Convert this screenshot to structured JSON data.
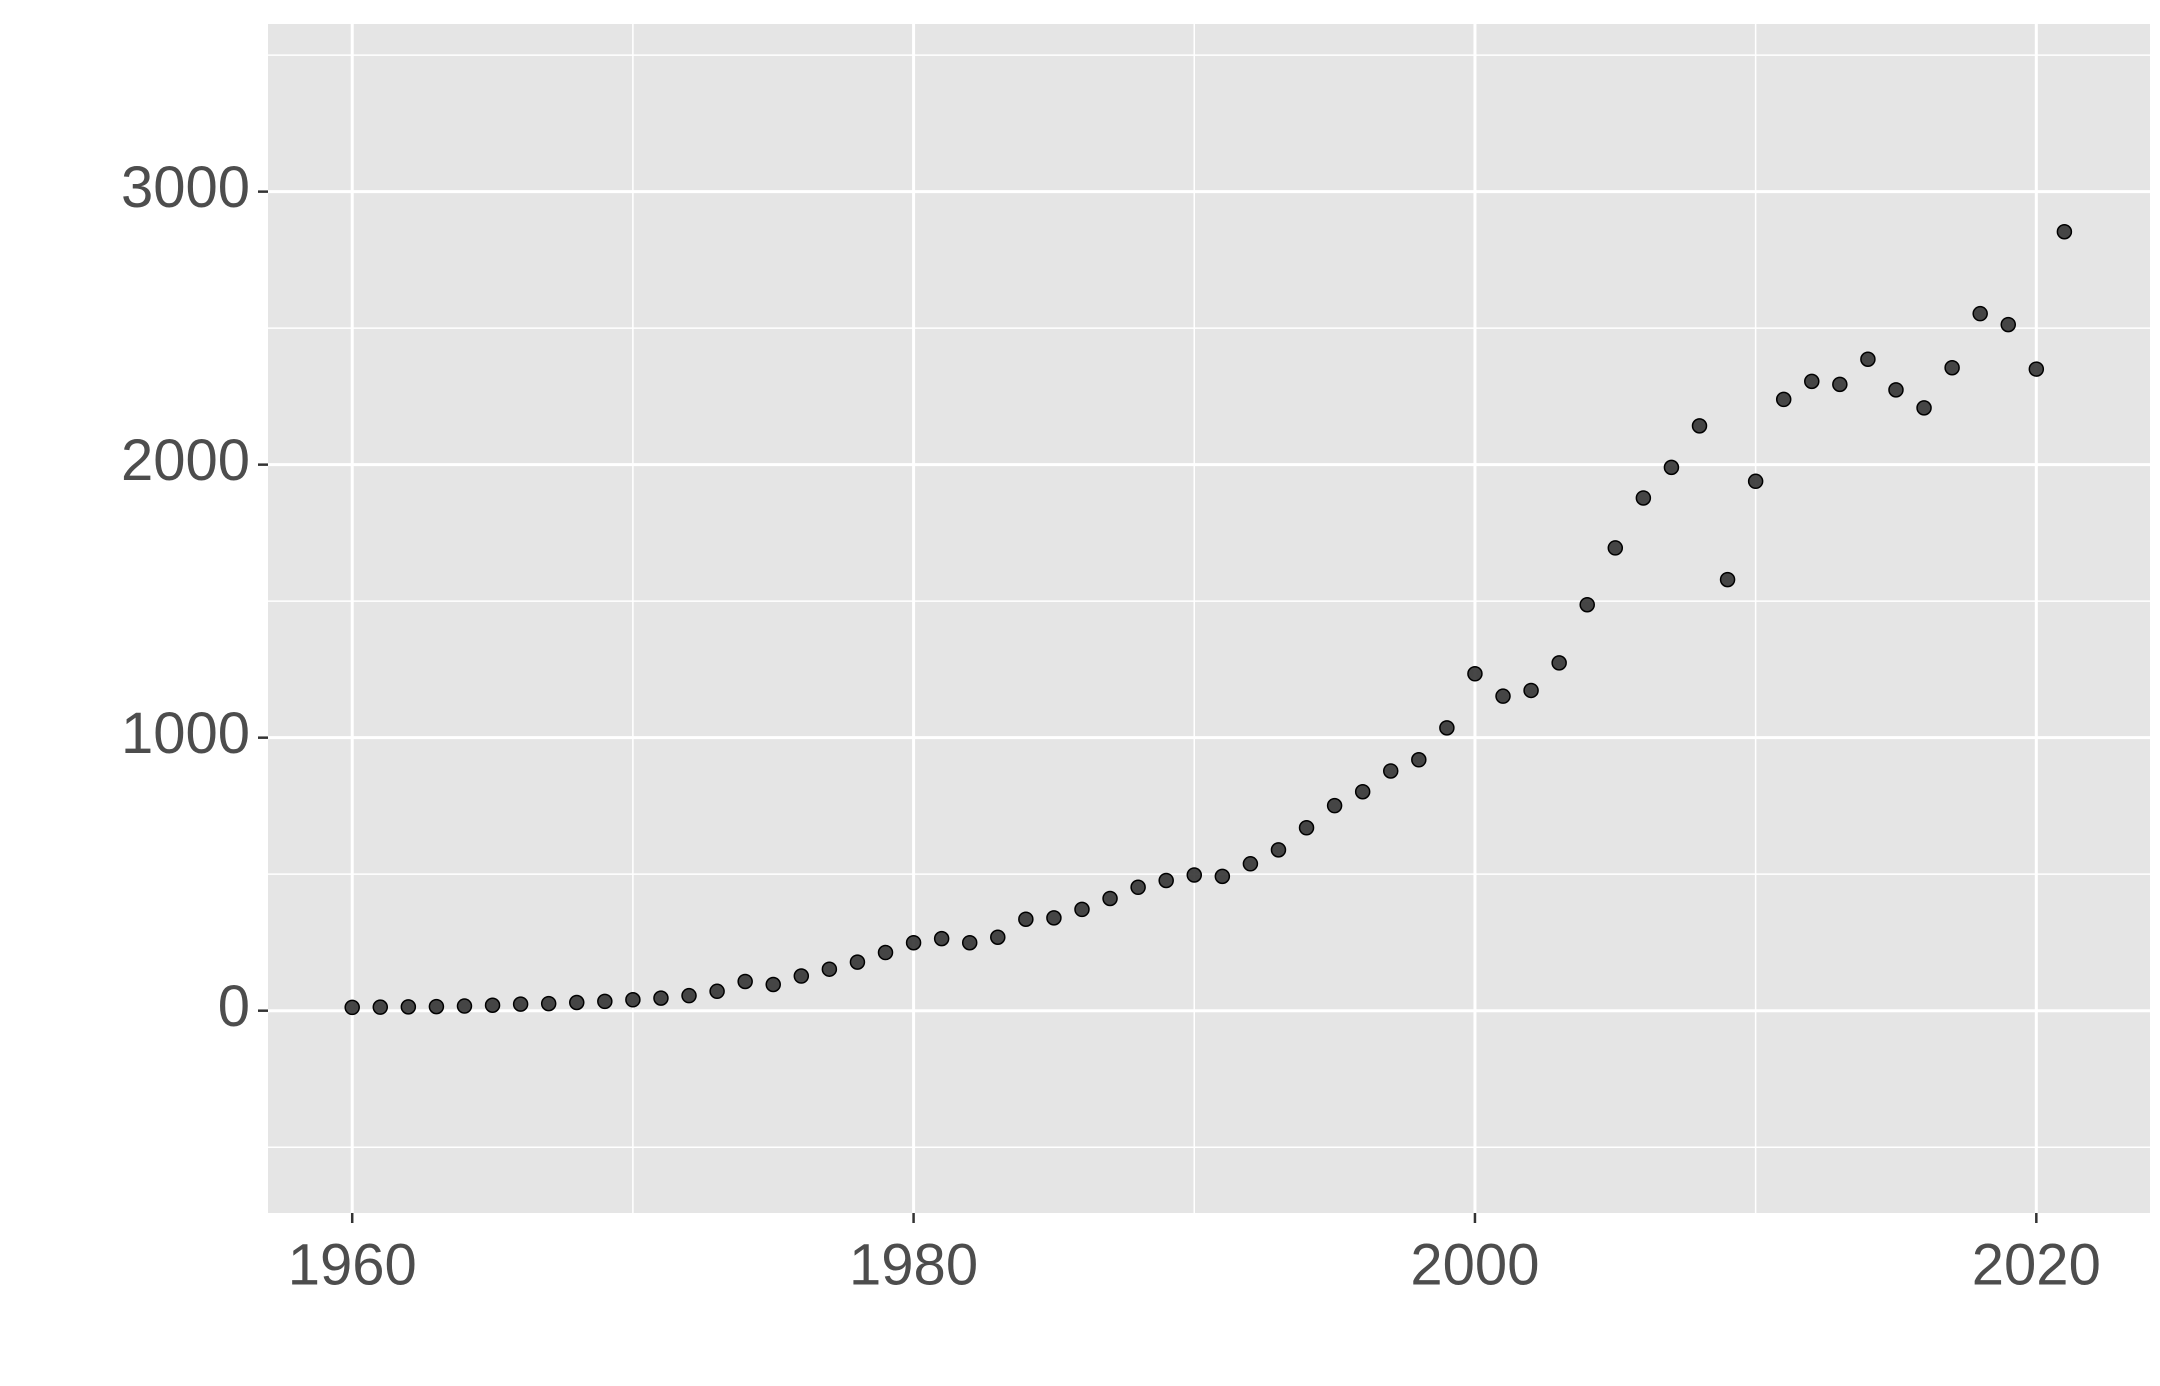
{
  "chart_data": {
    "type": "scatter",
    "x": [
      1960,
      1961,
      1962,
      1963,
      1964,
      1965,
      1966,
      1967,
      1968,
      1969,
      1970,
      1971,
      1972,
      1973,
      1974,
      1975,
      1976,
      1977,
      1978,
      1979,
      1980,
      1981,
      1982,
      1983,
      1984,
      1985,
      1986,
      1987,
      1988,
      1989,
      1990,
      1991,
      1992,
      1993,
      1994,
      1995,
      1996,
      1997,
      1998,
      1999,
      2000,
      2001,
      2002,
      2003,
      2004,
      2005,
      2006,
      2007,
      2008,
      2009,
      2010,
      2011,
      2012,
      2013,
      2014,
      2015,
      2016,
      2017,
      2018,
      2019,
      2020,
      2021
    ],
    "values": [
      12,
      13,
      14,
      15,
      17,
      20,
      24,
      26,
      30,
      34,
      40,
      46,
      55,
      71,
      107,
      96,
      127,
      152,
      178,
      213,
      249,
      264,
      249,
      269,
      335,
      340,
      371,
      411,
      452,
      477,
      497,
      492,
      538,
      589,
      670,
      751,
      802,
      878,
      919,
      1036,
      1234,
      1152,
      1173,
      1274,
      1487,
      1695,
      1878,
      1990,
      2142,
      1579,
      1939,
      2239,
      2305,
      2294,
      2386,
      2274,
      2208,
      2355,
      2553,
      2513,
      2350,
      2853
    ],
    "color": "#333333",
    "xlim": [
      1957,
      2024.05
    ],
    "ylim": [
      -741,
      3614
    ],
    "xticks": [
      1960,
      1980,
      2000,
      2020
    ],
    "yticks": [
      0,
      1000,
      2000,
      3000
    ],
    "x_minor_grid": [
      1970,
      1990,
      2010
    ],
    "y_minor_grid": [
      -500,
      500,
      1500,
      2500,
      3500
    ],
    "grid": true
  }
}
